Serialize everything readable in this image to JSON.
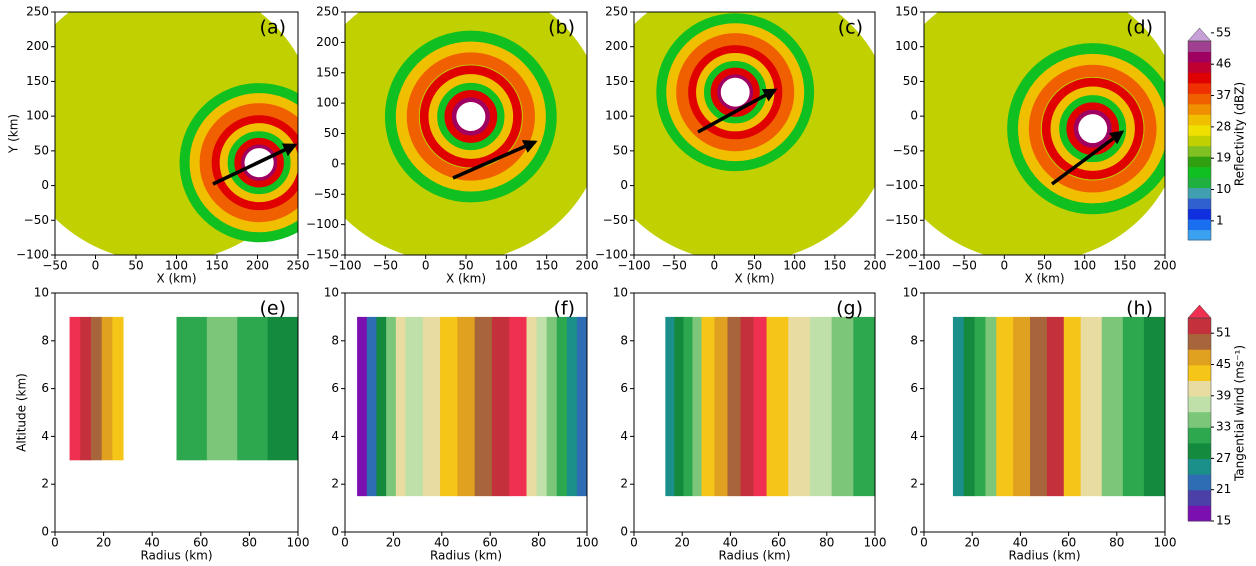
{
  "chart_data": [
    {
      "type": "radar",
      "panel_label": "(a)",
      "x_label": "X (km)",
      "y_label": "Y (km)",
      "xlim": [
        -50,
        250
      ],
      "ylim": [
        -100,
        250
      ],
      "xticks": [
        {
          "value": -50,
          "label": "−50"
        },
        0,
        50,
        100,
        150,
        200,
        250
      ],
      "yticks": [
        {
          "value": -100,
          "label": "−100"
        },
        {
          "value": -50,
          "label": "−50"
        },
        0,
        50,
        100,
        150,
        200,
        250
      ]
    },
    {
      "type": "radar",
      "panel_label": "(b)",
      "x_label": "X (km)",
      "xlim": [
        -100,
        200
      ],
      "ylim": [
        -150,
        250
      ],
      "xticks": [
        {
          "value": -100,
          "label": "−100"
        },
        {
          "value": -50,
          "label": "−50"
        },
        0,
        50,
        100,
        150,
        200
      ],
      "yticks": [
        {
          "value": -150,
          "label": "−150"
        },
        {
          "value": -100,
          "label": "−100"
        },
        {
          "value": -50,
          "label": "−50"
        },
        0,
        50,
        100,
        150,
        200,
        250
      ]
    },
    {
      "type": "radar",
      "panel_label": "(c)",
      "x_label": "X (km)",
      "xlim": [
        -100,
        200
      ],
      "ylim": [
        -100,
        250
      ],
      "xticks": [
        {
          "value": -100,
          "label": "−100"
        },
        {
          "value": -50,
          "label": "−50"
        },
        0,
        50,
        100,
        150,
        200
      ],
      "yticks": [
        {
          "value": -100,
          "label": "−100"
        },
        {
          "value": -50,
          "label": "−50"
        },
        0,
        50,
        100,
        150,
        200,
        250
      ]
    },
    {
      "type": "radar",
      "panel_label": "(d)",
      "x_label": "X (km)",
      "xlim": [
        -100,
        200
      ],
      "ylim": [
        -200,
        150
      ],
      "xticks": [
        {
          "value": -100,
          "label": "−100"
        },
        {
          "value": -50,
          "label": "−50"
        },
        0,
        50,
        100,
        150,
        200
      ],
      "yticks": [
        {
          "value": -200,
          "label": "−200"
        },
        {
          "value": -150,
          "label": "−150"
        },
        {
          "value": -100,
          "label": "−100"
        },
        {
          "value": -50,
          "label": "−50"
        },
        0,
        50,
        100,
        150
      ]
    },
    {
      "type": "contour",
      "panel_label": "(e)",
      "x_label": "Radius (km)",
      "y_label": "Altitude (km)",
      "xlim": [
        0,
        100
      ],
      "ylim": [
        0,
        10
      ],
      "xticks": [
        0,
        20,
        40,
        60,
        80,
        100
      ],
      "yticks": [
        0,
        2,
        4,
        6,
        8,
        10
      ]
    },
    {
      "type": "contour",
      "panel_label": "(f)",
      "x_label": "Radius (km)",
      "xlim": [
        0,
        100
      ],
      "ylim": [
        0,
        10
      ],
      "xticks": [
        0,
        20,
        40,
        60,
        80,
        100
      ],
      "yticks": [
        0,
        2,
        4,
        6,
        8,
        10
      ]
    },
    {
      "type": "contour",
      "panel_label": "(g)",
      "x_label": "Radius (km)",
      "xlim": [
        0,
        100
      ],
      "ylim": [
        0,
        10
      ],
      "xticks": [
        0,
        20,
        40,
        60,
        80,
        100
      ],
      "yticks": [
        0,
        2,
        4,
        6,
        8,
        10
      ]
    },
    {
      "type": "contour",
      "panel_label": "(h)",
      "x_label": "Radius (km)",
      "xlim": [
        0,
        100
      ],
      "ylim": [
        0,
        10
      ],
      "xticks": [
        0,
        20,
        40,
        60,
        80,
        100
      ],
      "yticks": [
        0,
        2,
        4,
        6,
        8,
        10
      ]
    }
  ],
  "colorbars": [
    {
      "label": "Reflectivity (dBZ)",
      "lim": [
        -4.5,
        56.4
      ],
      "ticks": [
        1,
        10,
        19,
        28,
        37,
        46,
        55
      ],
      "colors": [
        "#3aa0f0",
        "#1a6ef0",
        "#1030e0",
        "#3060d0",
        "#40a0b0",
        "#20b040",
        "#10c020",
        "#30a010",
        "#80c020",
        "#c0d000",
        "#f0e000",
        "#f0c000",
        "#f09000",
        "#f06000",
        "#f03000",
        "#e00000",
        "#c00030",
        "#a00060",
        "#a04090",
        "#c8a0d8"
      ]
    },
    {
      "label": "Tangential wind (ms⁻¹)",
      "lim": [
        15,
        56.4
      ],
      "ticks": [
        15,
        21,
        27,
        33,
        39,
        45,
        51
      ],
      "colors": [
        "#7a10b0",
        "#4b3fa8",
        "#2e6db4",
        "#1b8f8a",
        "#138a3d",
        "#2ea84f",
        "#7cc67a",
        "#bfe0a9",
        "#e8dca0",
        "#f5c518",
        "#e0a020",
        "#a8643a",
        "#c4303c",
        "#f03050"
      ]
    }
  ]
}
